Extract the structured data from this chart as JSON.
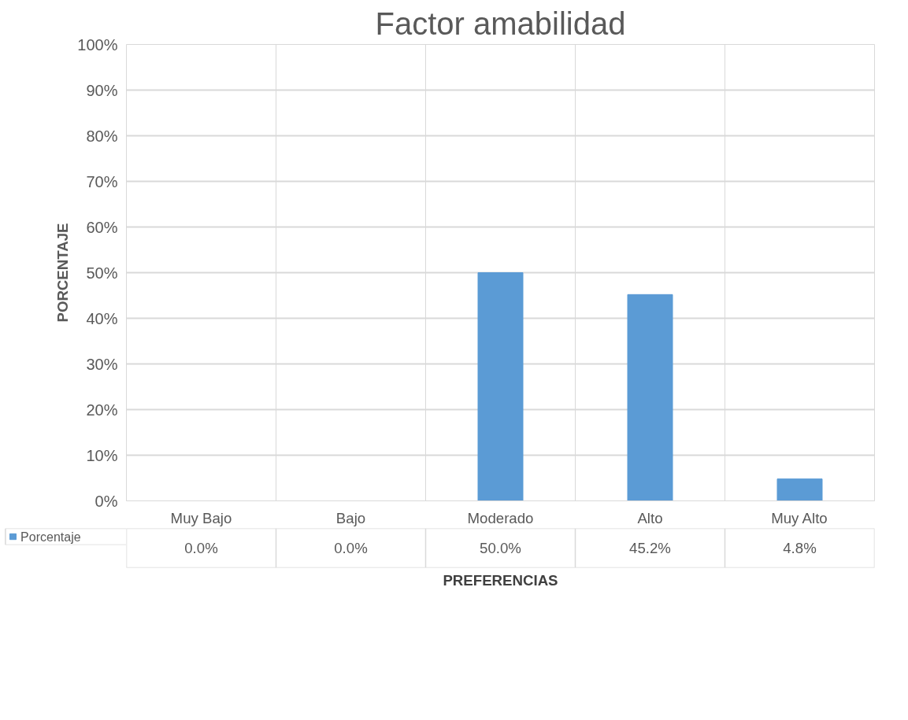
{
  "chart_data": {
    "type": "bar",
    "title": "Factor amabilidad",
    "xlabel": "PREFERENCIAS",
    "ylabel": "PORCENTAJE",
    "categories": [
      "Muy Bajo",
      "Bajo",
      "Moderado",
      "Alto",
      "Muy Alto"
    ],
    "series": [
      {
        "name": "Porcentaje",
        "color": "#5b9bd5",
        "values": [
          0.0,
          0.0,
          50.0,
          45.2,
          4.8
        ],
        "value_labels": [
          "0.0%",
          "0.0%",
          "50.0%",
          "45.2%",
          "4.8%"
        ]
      }
    ],
    "ylim": [
      0,
      100
    ],
    "yticks": [
      {
        "value": 0,
        "label": "0%"
      },
      {
        "value": 10,
        "label": "10%"
      },
      {
        "value": 20,
        "label": "20%"
      },
      {
        "value": 30,
        "label": "30%"
      },
      {
        "value": 40,
        "label": "40%"
      },
      {
        "value": 50,
        "label": "50%"
      },
      {
        "value": 60,
        "label": "60%"
      },
      {
        "value": 70,
        "label": "70%"
      },
      {
        "value": 80,
        "label": "80%"
      },
      {
        "value": 90,
        "label": "90%"
      },
      {
        "value": 100,
        "label": "100%"
      }
    ],
    "grid": true,
    "legend": "bottom left"
  }
}
